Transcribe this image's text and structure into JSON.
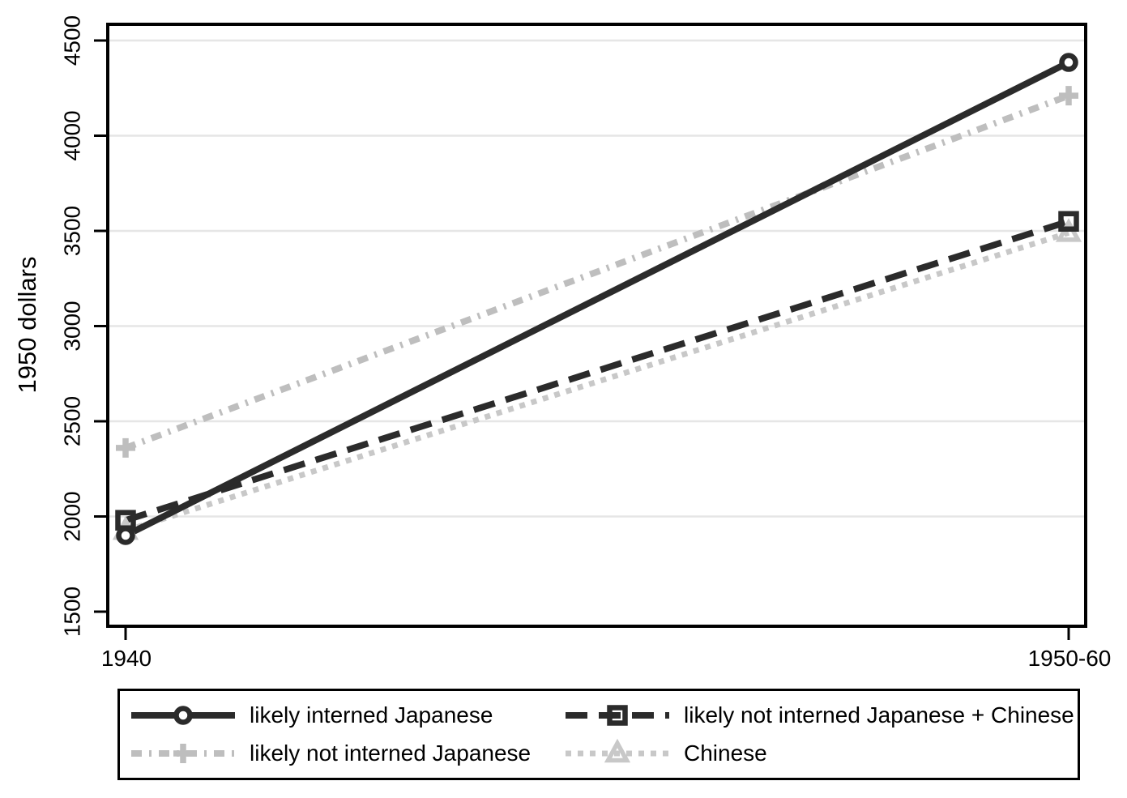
{
  "figure": {
    "background": "#ffffff",
    "axis_color": "#000000",
    "gridline_color": "#e6e6e6",
    "text_color": "#000000"
  },
  "chart_data": {
    "type": "line",
    "title": "",
    "xlabel": "",
    "ylabel": "1950 dollars",
    "x_categories": [
      "1940",
      "1950-60"
    ],
    "ylim": [
      1500,
      4500
    ],
    "yticks": [
      1500,
      2000,
      2500,
      3000,
      3500,
      4000,
      4500
    ],
    "gridlines_at": [
      2000,
      2500,
      3000,
      3500,
      4000,
      4500
    ],
    "grid": true,
    "legend_position": "bottom-box",
    "series": [
      {
        "label": "likely interned Japanese",
        "values": [
          1900,
          4385
        ],
        "color": "#2b2b2b",
        "line_style": "solid",
        "marker": "circle"
      },
      {
        "label": "likely not interned Japanese + Chinese",
        "values": [
          1980,
          3550
        ],
        "color": "#2b2b2b",
        "line_style": "dashed",
        "marker": "square"
      },
      {
        "label": "likely not interned Japanese",
        "values": [
          2360,
          4210
        ],
        "color": "#bebebe",
        "line_style": "dash-dot",
        "marker": "plus"
      },
      {
        "label": "Chinese",
        "values": [
          1925,
          3490
        ],
        "color": "#c8c8c8",
        "line_style": "dotted",
        "marker": "triangle"
      }
    ]
  }
}
